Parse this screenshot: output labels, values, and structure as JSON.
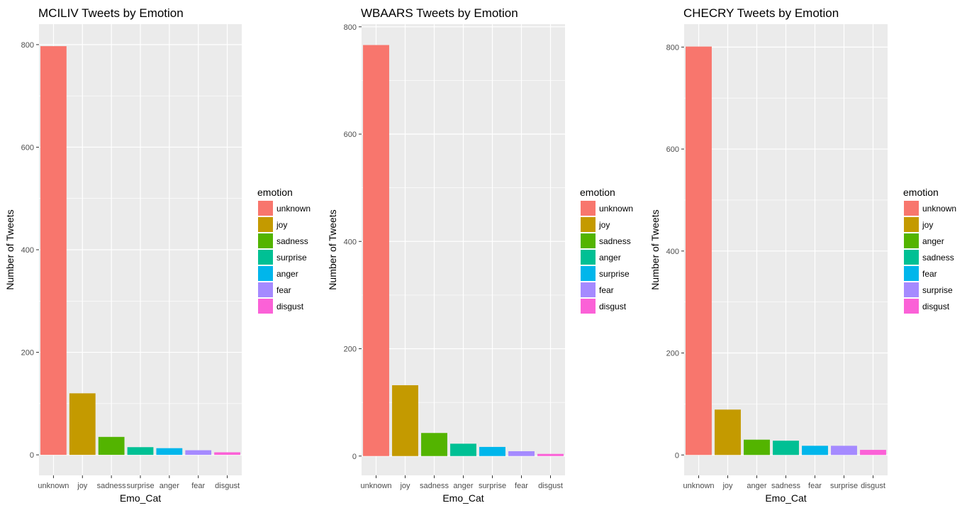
{
  "colors": {
    "unknown": "#F8766D",
    "joy": "#C49A00",
    "sadness_anger_3rd": "#53B400",
    "4th": "#00C094",
    "5th": "#00B6EB",
    "6th": "#A58AFF",
    "7th": "#FB61D7",
    "panel_bg": "#EBEBEB",
    "grid": "#FFFFFF"
  },
  "chart_data": [
    {
      "type": "bar",
      "title": "MCILIV Tweets by Emotion",
      "xlabel": "Emo_Cat",
      "ylabel": "Number of Tweets",
      "ylim": [
        -40,
        840
      ],
      "yticks": [
        "0",
        "200",
        "400",
        "600",
        "800"
      ],
      "categories": [
        "unknown",
        "joy",
        "sadness",
        "surprise",
        "anger",
        "fear",
        "disgust"
      ],
      "values": [
        797,
        120,
        35,
        15,
        13,
        9,
        5
      ],
      "colors": [
        "#F8766D",
        "#C49A00",
        "#53B400",
        "#00C094",
        "#00B6EB",
        "#A58AFF",
        "#FB61D7"
      ],
      "legend_title": "emotion",
      "legend": [
        "unknown",
        "joy",
        "sadness",
        "surprise",
        "anger",
        "fear",
        "disgust"
      ],
      "legend_position": "right",
      "grid": true
    },
    {
      "type": "bar",
      "title": "WBAARS Tweets by Emotion",
      "xlabel": "Emo_Cat",
      "ylabel": "Number of Tweets",
      "ylim": [
        -36,
        805
      ],
      "yticks": [
        "0",
        "200",
        "400",
        "600",
        "800"
      ],
      "categories": [
        "unknown",
        "joy",
        "sadness",
        "anger",
        "surprise",
        "fear",
        "disgust"
      ],
      "values": [
        766,
        132,
        43,
        23,
        17,
        9,
        4
      ],
      "colors": [
        "#F8766D",
        "#C49A00",
        "#53B400",
        "#00C094",
        "#00B6EB",
        "#A58AFF",
        "#FB61D7"
      ],
      "legend_title": "emotion",
      "legend": [
        "unknown",
        "joy",
        "sadness",
        "anger",
        "surprise",
        "fear",
        "disgust"
      ],
      "legend_position": "right",
      "grid": true
    },
    {
      "type": "bar",
      "title": "CHECRY Tweets by Emotion",
      "xlabel": "Emo_Cat",
      "ylabel": "Number of Tweets",
      "ylim": [
        -40,
        845
      ],
      "yticks": [
        "0",
        "200",
        "400",
        "600",
        "800"
      ],
      "categories": [
        "unknown",
        "joy",
        "anger",
        "sadness",
        "fear",
        "surprise",
        "disgust"
      ],
      "values": [
        801,
        89,
        30,
        28,
        18,
        18,
        10
      ],
      "colors": [
        "#F8766D",
        "#C49A00",
        "#53B400",
        "#00C094",
        "#00B6EB",
        "#A58AFF",
        "#FB61D7"
      ],
      "legend_title": "emotion",
      "legend": [
        "unknown",
        "joy",
        "anger",
        "sadness",
        "fear",
        "surprise",
        "disgust"
      ],
      "legend_position": "right",
      "grid": true
    }
  ]
}
